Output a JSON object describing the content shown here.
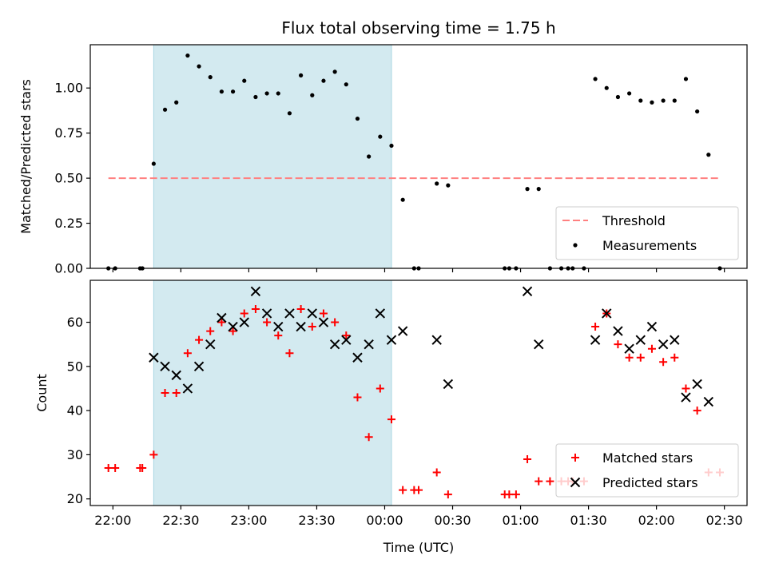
{
  "chart_data": [
    {
      "type": "scatter",
      "title": "Flux total observing time = 1.75 h",
      "ylabel": "Matched/Predicted stars",
      "xlabel": "",
      "xlim": [
        "21:50",
        "02:40"
      ],
      "ylim": [
        0,
        1.24
      ],
      "yticks": [
        "0.00",
        "0.25",
        "0.50",
        "0.75",
        "1.00"
      ],
      "highlight_span": [
        "22:18",
        "00:03"
      ],
      "highlight_color": "#d3eaf0",
      "grid": false,
      "legend_position": "lower right",
      "series": [
        {
          "name": "Threshold",
          "style": "dashed-line",
          "color": "#ff8080",
          "x": [
            "21:58",
            "02:28"
          ],
          "y": [
            0.5,
            0.5
          ]
        },
        {
          "name": "Measurements",
          "style": "dot",
          "color": "#000000",
          "x": [
            "21:58",
            "22:01",
            "22:12",
            "22:13",
            "22:18",
            "22:23",
            "22:28",
            "22:33",
            "22:38",
            "22:43",
            "22:48",
            "22:53",
            "22:58",
            "23:03",
            "23:08",
            "23:13",
            "23:18",
            "23:23",
            "23:28",
            "23:33",
            "23:38",
            "23:43",
            "23:48",
            "23:53",
            "23:58",
            "00:03",
            "00:08",
            "00:13",
            "00:15",
            "00:23",
            "00:28",
            "00:53",
            "00:55",
            "00:58",
            "01:03",
            "01:08",
            "01:13",
            "01:18",
            "01:21",
            "01:23",
            "01:28",
            "01:33",
            "01:38",
            "01:43",
            "01:48",
            "01:53",
            "01:58",
            "02:03",
            "02:08",
            "02:13",
            "02:18",
            "02:23",
            "02:28"
          ],
          "y": [
            0,
            0,
            0,
            0,
            0.58,
            0.88,
            0.92,
            1.18,
            1.12,
            1.06,
            0.98,
            0.98,
            1.04,
            0.95,
            0.97,
            0.97,
            0.86,
            1.07,
            0.96,
            1.04,
            1.09,
            1.02,
            0.83,
            0.62,
            0.73,
            0.68,
            0.38,
            0,
            0,
            0.47,
            0.46,
            0,
            0,
            0,
            0.44,
            0.44,
            0,
            0,
            0,
            0,
            0,
            1.05,
            1.0,
            0.95,
            0.97,
            0.93,
            0.92,
            0.93,
            0.93,
            1.05,
            0.87,
            0.63,
            0
          ]
        }
      ]
    },
    {
      "type": "scatter",
      "title": "",
      "ylabel": "Count",
      "xlabel": "Time (UTC)",
      "xlim": [
        "21:50",
        "02:40"
      ],
      "xticks": [
        "22:00",
        "22:30",
        "23:00",
        "23:30",
        "00:00",
        "00:30",
        "01:00",
        "01:30",
        "02:00",
        "02:30"
      ],
      "ylim": [
        18.5,
        69.5
      ],
      "yticks": [
        "20",
        "30",
        "40",
        "50",
        "60"
      ],
      "highlight_span": [
        "22:18",
        "00:03"
      ],
      "highlight_color": "#d3eaf0",
      "grid": false,
      "legend_position": "lower right",
      "series": [
        {
          "name": "Matched stars",
          "style": "plus",
          "color": "#ff0000",
          "x": [
            "21:58",
            "22:01",
            "22:12",
            "22:13",
            "22:18",
            "22:23",
            "22:28",
            "22:33",
            "22:38",
            "22:43",
            "22:48",
            "22:53",
            "22:58",
            "23:03",
            "23:08",
            "23:13",
            "23:18",
            "23:23",
            "23:28",
            "23:33",
            "23:38",
            "23:43",
            "23:48",
            "23:53",
            "23:58",
            "00:03",
            "00:08",
            "00:13",
            "00:15",
            "00:23",
            "00:28",
            "00:53",
            "00:55",
            "00:58",
            "01:03",
            "01:08",
            "01:13",
            "01:18",
            "01:21",
            "01:23",
            "01:28",
            "01:33",
            "01:38",
            "01:43",
            "01:48",
            "01:53",
            "01:58",
            "02:03",
            "02:08",
            "02:13",
            "02:18",
            "02:23",
            "02:28"
          ],
          "y": [
            27,
            27,
            27,
            27,
            30,
            44,
            44,
            53,
            56,
            58,
            60,
            58,
            62,
            63,
            60,
            57,
            53,
            63,
            59,
            62,
            60,
            57,
            43,
            34,
            45,
            38,
            22,
            22,
            22,
            26,
            21,
            21,
            21,
            21,
            29,
            24,
            24,
            24,
            24,
            24,
            24,
            59,
            62,
            55,
            52,
            52,
            54,
            51,
            52,
            45,
            40,
            26,
            26
          ]
        },
        {
          "name": "Predicted stars",
          "style": "x",
          "color": "#000000",
          "x": [
            "22:18",
            "22:23",
            "22:28",
            "22:33",
            "22:38",
            "22:43",
            "22:48",
            "22:53",
            "22:58",
            "23:03",
            "23:08",
            "23:13",
            "23:18",
            "23:23",
            "23:28",
            "23:33",
            "23:38",
            "23:43",
            "23:48",
            "23:53",
            "23:58",
            "00:03",
            "00:08",
            "00:23",
            "00:28",
            "01:03",
            "01:08",
            "01:33",
            "01:38",
            "01:43",
            "01:48",
            "01:53",
            "01:58",
            "02:03",
            "02:08",
            "02:13",
            "02:18",
            "02:23"
          ],
          "y": [
            52,
            50,
            48,
            45,
            50,
            55,
            61,
            59,
            60,
            67,
            62,
            59,
            62,
            59,
            62,
            60,
            55,
            56,
            52,
            55,
            62,
            56,
            58,
            56,
            46,
            67,
            55,
            56,
            62,
            58,
            54,
            56,
            59,
            55,
            56,
            43,
            46,
            42
          ]
        }
      ]
    }
  ]
}
